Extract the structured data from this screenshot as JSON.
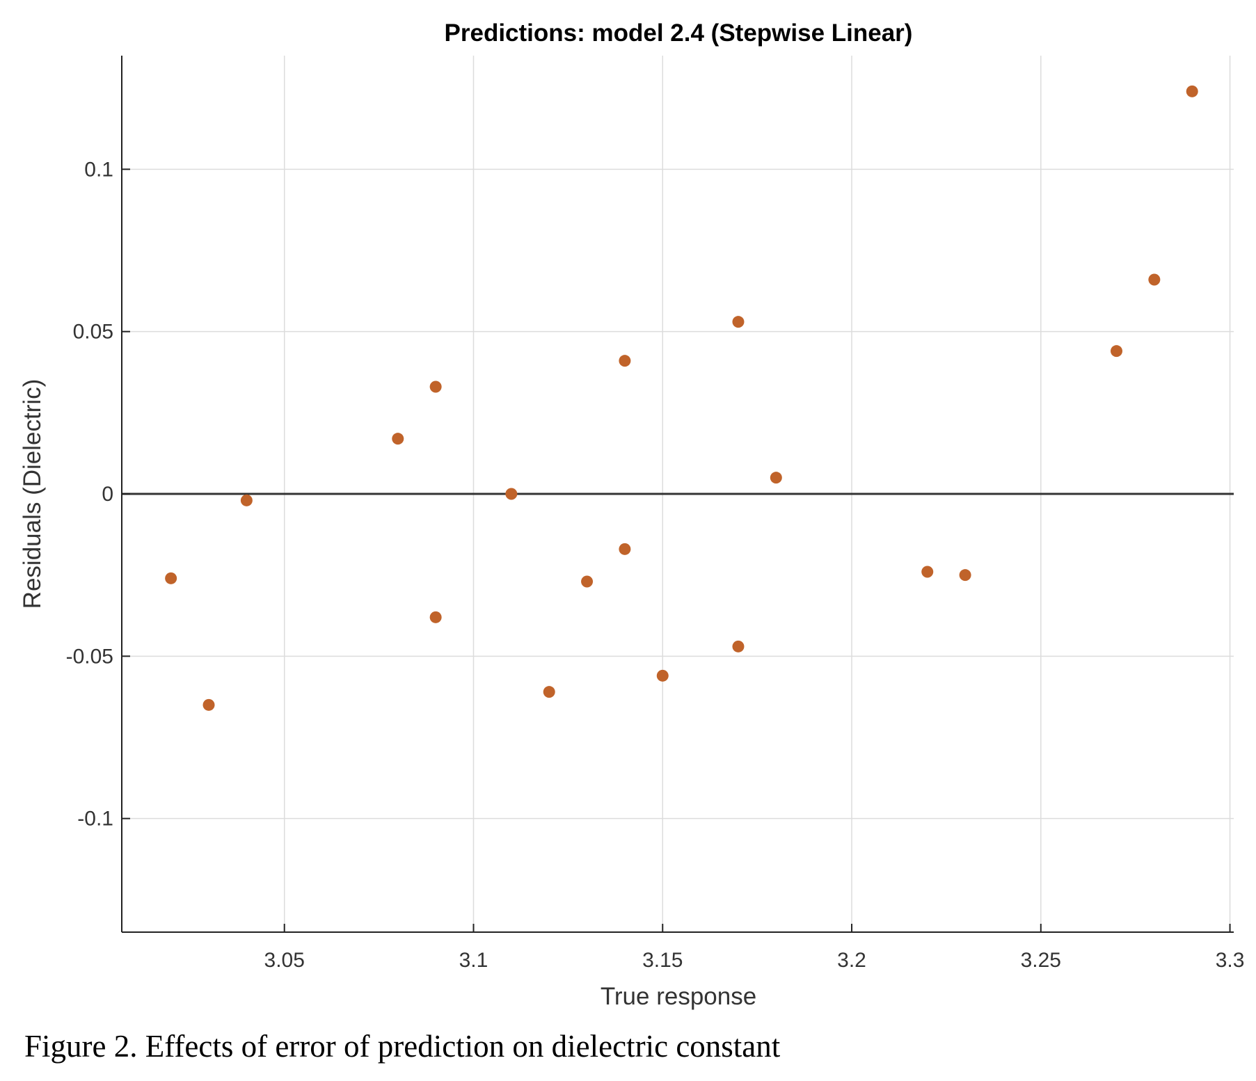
{
  "chart_data": {
    "type": "scatter",
    "title": "Predictions: model 2.4 (Stepwise Linear)",
    "xlabel": "True response",
    "ylabel": "Residuals (Dielectric)",
    "xlim": [
      3.007,
      3.301
    ],
    "ylim": [
      -0.135,
      0.135
    ],
    "xticks": [
      3.05,
      3.1,
      3.15,
      3.2,
      3.25,
      3.3
    ],
    "xtick_labels": [
      "3.05",
      "3.1",
      "3.15",
      "3.2",
      "3.25",
      "3.3"
    ],
    "yticks": [
      -0.1,
      -0.05,
      0,
      0.05,
      0.1
    ],
    "ytick_labels": [
      "-0.1",
      "-0.05",
      "0",
      "0.05",
      "0.1"
    ],
    "grid": true,
    "zero_line": true,
    "marker_color": "#C0632A",
    "points": [
      {
        "x": 3.02,
        "y": -0.026
      },
      {
        "x": 3.03,
        "y": -0.065
      },
      {
        "x": 3.04,
        "y": -0.002
      },
      {
        "x": 3.08,
        "y": 0.017
      },
      {
        "x": 3.09,
        "y": 0.033
      },
      {
        "x": 3.09,
        "y": -0.038
      },
      {
        "x": 3.11,
        "y": 0.0
      },
      {
        "x": 3.12,
        "y": -0.061
      },
      {
        "x": 3.13,
        "y": -0.027
      },
      {
        "x": 3.14,
        "y": 0.041
      },
      {
        "x": 3.14,
        "y": -0.017
      },
      {
        "x": 3.15,
        "y": -0.056
      },
      {
        "x": 3.17,
        "y": 0.053
      },
      {
        "x": 3.17,
        "y": -0.047
      },
      {
        "x": 3.18,
        "y": 0.005
      },
      {
        "x": 3.22,
        "y": -0.024
      },
      {
        "x": 3.23,
        "y": -0.025
      },
      {
        "x": 3.27,
        "y": 0.044
      },
      {
        "x": 3.28,
        "y": 0.066
      },
      {
        "x": 3.29,
        "y": 0.124
      }
    ]
  },
  "caption": "Figure 2. Effects of error of prediction on dielectric constant"
}
